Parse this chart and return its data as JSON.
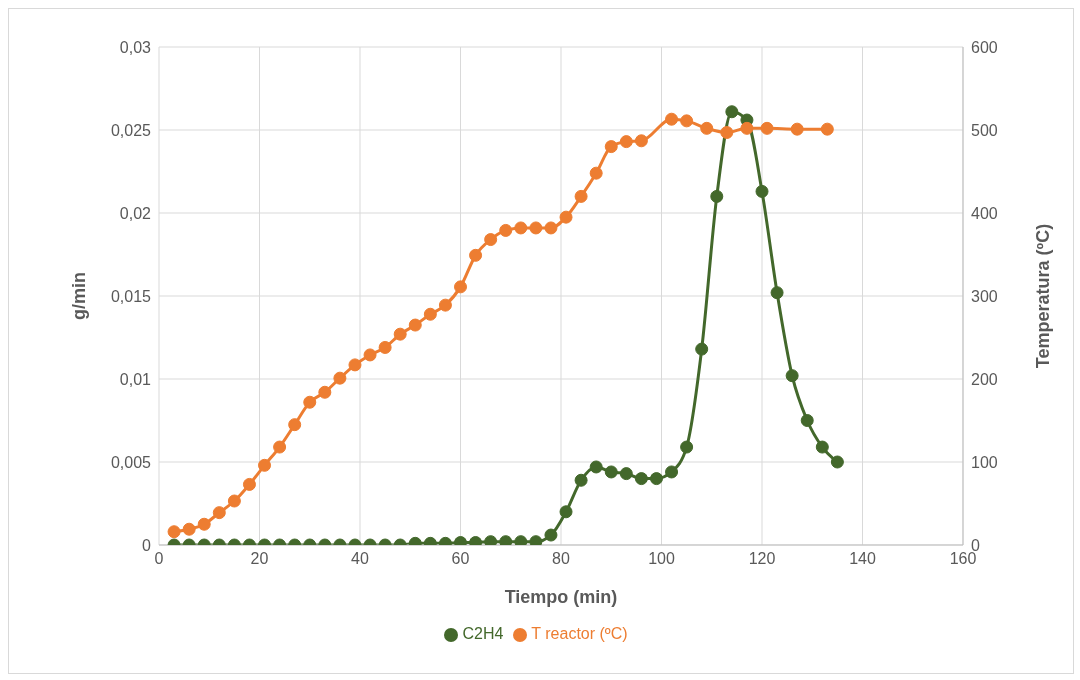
{
  "chart_data": {
    "type": "line",
    "xlabel": "Tiempo (min)",
    "ylabel": "g/min",
    "y2label": "Temperatura (ºC)",
    "xlim": [
      0,
      160
    ],
    "xticks": [
      0,
      20,
      40,
      60,
      80,
      100,
      120,
      140,
      160
    ],
    "ylim": [
      0,
      0.03
    ],
    "yticks": [
      {
        "value": 0,
        "label": "0"
      },
      {
        "value": 0.005,
        "label": "0,005"
      },
      {
        "value": 0.01,
        "label": "0,01"
      },
      {
        "value": 0.015,
        "label": "0,015"
      },
      {
        "value": 0.02,
        "label": "0,02"
      },
      {
        "value": 0.025,
        "label": "0,025"
      },
      {
        "value": 0.03,
        "label": "0,03"
      }
    ],
    "y2lim": [
      0,
      600
    ],
    "y2ticks": [
      0,
      100,
      200,
      300,
      400,
      500,
      600
    ],
    "grid": true,
    "legend": "bottom",
    "marker": "circle",
    "line_style": "solid",
    "series": [
      {
        "name": "C2H4",
        "color": "#43682b",
        "x": [
          3,
          6,
          9,
          12,
          15,
          18,
          21,
          24,
          27,
          30,
          33,
          36,
          39,
          42,
          45,
          48,
          51,
          54,
          57,
          60,
          63,
          66,
          69,
          72,
          75,
          78,
          81,
          84,
          87,
          90,
          93,
          96,
          99,
          102,
          105,
          108,
          111,
          114,
          117,
          120,
          123,
          126,
          129,
          132,
          135
        ],
        "values": [
          0,
          0,
          0,
          0,
          0,
          0,
          0,
          0,
          0,
          0,
          0,
          0,
          0,
          0,
          0,
          0,
          0.0001,
          0.0001,
          0.0001,
          0.00015,
          0.00015,
          0.0002,
          0.0002,
          0.0002,
          0.0002,
          0.0006,
          0.002,
          0.0039,
          0.0047,
          0.0044,
          0.0043,
          0.004,
          0.004,
          0.0044,
          0.0059,
          0.0118,
          0.021,
          0.0261,
          0.0256,
          0.0213,
          0.0152,
          0.0102,
          0.0075,
          0.0059,
          0.005
        ]
      },
      {
        "name": "T reactor (ºC)",
        "color": "#ed7d31",
        "axis": "y2",
        "x": [
          3,
          6,
          9,
          12,
          15,
          18,
          21,
          24,
          27,
          30,
          33,
          36,
          39,
          42,
          45,
          48,
          51,
          54,
          57,
          60,
          63,
          66,
          69,
          72,
          75,
          78,
          81,
          84,
          87,
          90,
          93,
          96,
          102,
          105,
          109,
          113,
          117,
          121,
          127,
          133
        ],
        "values": [
          16,
          19,
          25,
          39,
          53,
          73,
          96,
          118,
          145,
          172,
          184,
          201,
          217,
          229,
          238,
          254,
          265,
          278,
          289,
          311,
          349,
          368,
          379,
          382,
          382,
          382,
          395,
          420,
          448,
          480,
          486,
          487,
          513,
          511,
          502,
          497,
          502,
          502,
          501,
          501
        ]
      }
    ]
  }
}
